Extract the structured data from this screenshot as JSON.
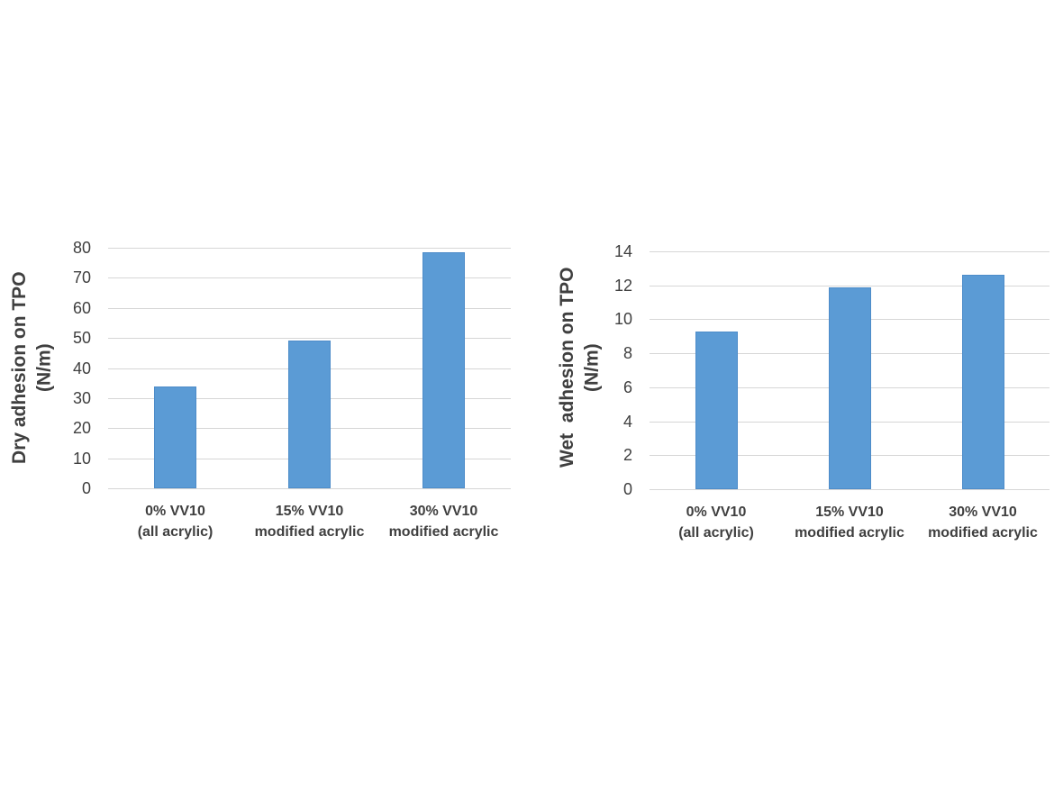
{
  "chart_data": [
    {
      "type": "bar",
      "title": "",
      "ylabel": "Dry adhesion on TPO\n(N/m)",
      "xlabel": "",
      "categories": [
        "0% VV10\n(all acrylic)",
        "15% VV10\nmodified acrylic",
        "30% VV10\nmodified acrylic"
      ],
      "values": [
        34,
        49,
        78.5
      ],
      "ylim": [
        0,
        80
      ],
      "ytick_step": 10,
      "ytick_labels": [
        "0",
        "10",
        "20",
        "30",
        "40",
        "50",
        "60",
        "70",
        "80"
      ],
      "grid": "horizontal",
      "legend": "none",
      "bar_color": "#5b9bd5"
    },
    {
      "type": "bar",
      "title": "",
      "ylabel": "Wet  adhesion on TPO\n(N/m)",
      "xlabel": "",
      "categories": [
        "0% VV10\n(all acrylic)",
        "15% VV10\nmodified acrylic",
        "30% VV10\nmodified acrylic"
      ],
      "values": [
        9.3,
        11.9,
        12.6
      ],
      "ylim": [
        0,
        14
      ],
      "ytick_step": 2,
      "ytick_labels": [
        "0",
        "2",
        "4",
        "6",
        "8",
        "10",
        "12",
        "14"
      ],
      "grid": "horizontal",
      "legend": "none",
      "bar_color": "#5b9bd5"
    }
  ],
  "colors": {
    "bar": "#5b9bd5",
    "bar_border": "#4d8cc9",
    "gridline": "#d6d6d6",
    "text": "#3f3f3f",
    "background": "#ffffff"
  }
}
